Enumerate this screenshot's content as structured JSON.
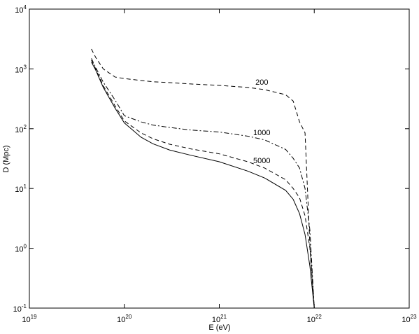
{
  "chart_data": {
    "type": "line",
    "xlabel": "E (eV)",
    "ylabel": "D (Mpc)",
    "xscale": "log",
    "yscale": "log",
    "xlim": [
      1e+19,
      1e+23
    ],
    "ylim": [
      0.1,
      10000
    ],
    "xticks": [
      {
        "value": 1e+19,
        "label": "10^19"
      },
      {
        "value": 1e+20,
        "label": "10^20"
      },
      {
        "value": 1e+21,
        "label": "10^21"
      },
      {
        "value": 1e+22,
        "label": "10^22"
      },
      {
        "value": 1e+23,
        "label": "10^23"
      }
    ],
    "yticks": [
      {
        "value": 0.1,
        "label": "10^-1"
      },
      {
        "value": 1,
        "label": "10^0"
      },
      {
        "value": 10,
        "label": "10^1"
      },
      {
        "value": 100,
        "label": "10^2"
      },
      {
        "value": 1000,
        "label": "10^3"
      },
      {
        "value": 10000,
        "label": "10^4"
      }
    ],
    "grid": false,
    "x": [
      4.5e+19,
      5e+19,
      6e+19,
      8e+19,
      1e+20,
      1.5e+20,
      2e+20,
      3e+20,
      5e+20,
      1e+21,
      2e+21,
      3e+21,
      5e+21,
      6e+21,
      7e+21,
      8e+21,
      9e+21,
      1e+22
    ],
    "series": [
      {
        "name": null,
        "color": "#000000",
        "dash": "solid",
        "values": [
          1300,
          950,
          490,
          220,
          125,
          72,
          56,
          44,
          36,
          28,
          19.5,
          15,
          9.3,
          6.6,
          3.8,
          1.7,
          0.5,
          0.1
        ]
      },
      {
        "name": "5000",
        "color": "#000000",
        "dash": "dashed",
        "values": [
          1400,
          1000,
          520,
          240,
          135,
          85,
          68,
          55,
          46,
          38,
          28,
          22,
          14,
          10,
          7,
          3.5,
          1,
          0.1
        ]
      },
      {
        "name": "1000",
        "color": "#000000",
        "dash": "dashdot",
        "values": [
          1500,
          1050,
          600,
          300,
          165,
          130,
          115,
          105,
          95,
          88,
          75,
          65,
          45,
          32,
          22,
          10,
          2,
          0.1
        ]
      },
      {
        "name": "200",
        "color": "#000000",
        "dash": "dashed",
        "values": [
          2150,
          1550,
          1000,
          730,
          690,
          640,
          610,
          590,
          560,
          530,
          490,
          450,
          370,
          290,
          130,
          85,
          1.1,
          0.1
        ]
      }
    ]
  }
}
